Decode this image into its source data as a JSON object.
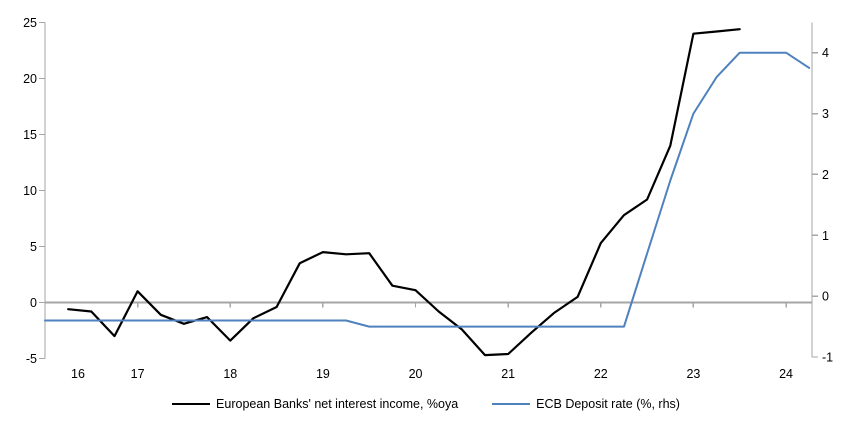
{
  "chart_data": {
    "type": "line",
    "title": "",
    "grid": "zero-line-only",
    "legend_position": "bottom-center",
    "x_axis": {
      "ticks": [
        16,
        17,
        18,
        19,
        20,
        21,
        22,
        23,
        24
      ],
      "tick_labels": [
        "16",
        "17",
        "18",
        "19",
        "20",
        "21",
        "22",
        "23",
        "24"
      ],
      "range": [
        16,
        24.28
      ]
    },
    "left_axis": {
      "ticks": [
        -5,
        0,
        5,
        10,
        15,
        20,
        25
      ],
      "range": [
        -5,
        25
      ]
    },
    "right_axis": {
      "ticks": [
        -1,
        0,
        1,
        2,
        3,
        4
      ],
      "range": [
        -1,
        4.5
      ]
    },
    "colors": {
      "nii_line": "#000000",
      "ecb_line": "#4F81BD",
      "axis_gray": "#A6A6A6"
    },
    "series": [
      {
        "name": "European Banks' net interest income, %oya",
        "axis": "left",
        "color": "#000000",
        "x": [
          16.25,
          16.5,
          16.75,
          17.0,
          17.25,
          17.5,
          17.75,
          18.0,
          18.25,
          18.5,
          18.75,
          19.0,
          19.25,
          19.5,
          19.75,
          20.0,
          20.25,
          20.5,
          20.75,
          21.0,
          21.25,
          21.5,
          21.75,
          22.0,
          22.25,
          22.5,
          22.75,
          23.0,
          23.25,
          23.5
        ],
        "values": [
          -0.6,
          -0.8,
          -3.0,
          1.0,
          -1.1,
          -1.9,
          -1.3,
          -3.4,
          -1.4,
          -0.4,
          3.5,
          4.5,
          4.3,
          4.4,
          1.5,
          1.1,
          -0.8,
          -2.4,
          -4.7,
          -4.6,
          -2.7,
          -0.9,
          0.5,
          5.3,
          7.8,
          9.2,
          14.0,
          24.0,
          24.2,
          24.4
        ]
      },
      {
        "name": "ECB Deposit rate (%, rhs)",
        "axis": "right",
        "color": "#4F81BD",
        "x": [
          16.0,
          16.25,
          16.5,
          16.75,
          17.0,
          17.25,
          17.5,
          17.75,
          18.0,
          18.25,
          18.5,
          18.75,
          19.0,
          19.25,
          19.5,
          19.75,
          20.0,
          20.25,
          20.5,
          20.75,
          21.0,
          21.25,
          21.5,
          21.75,
          22.0,
          22.25,
          22.5,
          22.75,
          23.0,
          23.25,
          23.5,
          23.75,
          24.0,
          24.25
        ],
        "values": [
          -0.4,
          -0.4,
          -0.4,
          -0.4,
          -0.4,
          -0.4,
          -0.4,
          -0.4,
          -0.4,
          -0.4,
          -0.4,
          -0.4,
          -0.4,
          -0.4,
          -0.5,
          -0.5,
          -0.5,
          -0.5,
          -0.5,
          -0.5,
          -0.5,
          -0.5,
          -0.5,
          -0.5,
          -0.5,
          -0.5,
          0.7,
          1.9,
          3.0,
          3.6,
          4.0,
          4.0,
          4.0,
          3.75
        ]
      }
    ]
  },
  "legend": {
    "item1": "European Banks' net interest income, %oya",
    "item2": "ECB Deposit rate (%, rhs)"
  }
}
